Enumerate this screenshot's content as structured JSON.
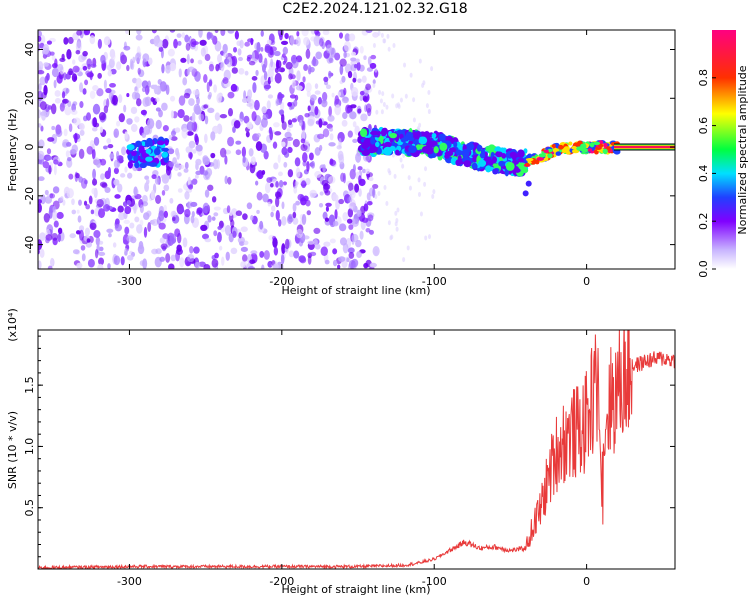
{
  "title": "C2E2.2024.121.02.32.G18",
  "chart_data": [
    {
      "type": "heatmap",
      "xlabel": "Height of straight line (km)",
      "ylabel": "Frequency (Hz)",
      "xlim": [
        -360,
        58
      ],
      "ylim": [
        -50,
        48
      ],
      "xticks": [
        -300,
        -200,
        -100,
        0
      ],
      "yticks": [
        -40,
        -20,
        0,
        20,
        40
      ],
      "colorbar": {
        "label": "Normalized spectral amplitude",
        "range": [
          0.0,
          1.0
        ],
        "ticks": [
          0.0,
          0.2,
          0.4,
          0.6,
          0.8
        ],
        "tick_labels": [
          "0.0",
          "0.2",
          "0.4",
          "0.6",
          "0.8"
        ],
        "colors": [
          "#ffffff",
          "#c8b4ff",
          "#8000ff",
          "#2040ff",
          "#00e0ff",
          "#00ff40",
          "#ffff00",
          "#ff3000",
          "#ff0080"
        ]
      },
      "main_track": [
        {
          "x": -300,
          "y": -3
        },
        {
          "x": -280,
          "y": -2
        },
        {
          "x": -150,
          "y": 2
        },
        {
          "x": -120,
          "y": 2
        },
        {
          "x": -100,
          "y": 1
        },
        {
          "x": -80,
          "y": -3
        },
        {
          "x": -60,
          "y": -5
        },
        {
          "x": -45,
          "y": -7
        },
        {
          "x": -30,
          "y": -4
        },
        {
          "x": -20,
          "y": -1
        },
        {
          "x": 0,
          "y": 0
        },
        {
          "x": 20,
          "y": 0
        },
        {
          "x": 58,
          "y": 0
        }
      ]
    },
    {
      "type": "line",
      "xlabel": "Height of straight line (km)",
      "ylabel": "SNR (10 * v/v)",
      "y_multiplier": "(x10⁴)",
      "xlim": [
        -360,
        58
      ],
      "ylim": [
        0,
        1.95
      ],
      "xticks": [
        -300,
        -200,
        -100,
        0
      ],
      "yticks": [
        0.5,
        1.0,
        1.5
      ],
      "ytick_labels": [
        "0.5",
        "1.0",
        "1.5"
      ],
      "color": "#e83a3a",
      "series": [
        {
          "x": [
            -360,
            -300,
            -250,
            -200,
            -150,
            -120,
            -110,
            -100,
            -90,
            -80,
            -70,
            -60,
            -50,
            -40,
            -35,
            -30,
            -25,
            -20,
            -15,
            -10,
            -5,
            0,
            5,
            10,
            15,
            20,
            25,
            30,
            40,
            50,
            58
          ],
          "y": [
            0.01,
            0.02,
            0.02,
            0.02,
            0.02,
            0.03,
            0.05,
            0.08,
            0.15,
            0.22,
            0.17,
            0.18,
            0.15,
            0.17,
            0.35,
            0.5,
            0.75,
            0.95,
            1.05,
            1.1,
            1.12,
            1.2,
            1.45,
            1.05,
            1.35,
            1.45,
            1.6,
            1.65,
            1.7,
            1.72,
            1.7
          ]
        }
      ]
    }
  ]
}
